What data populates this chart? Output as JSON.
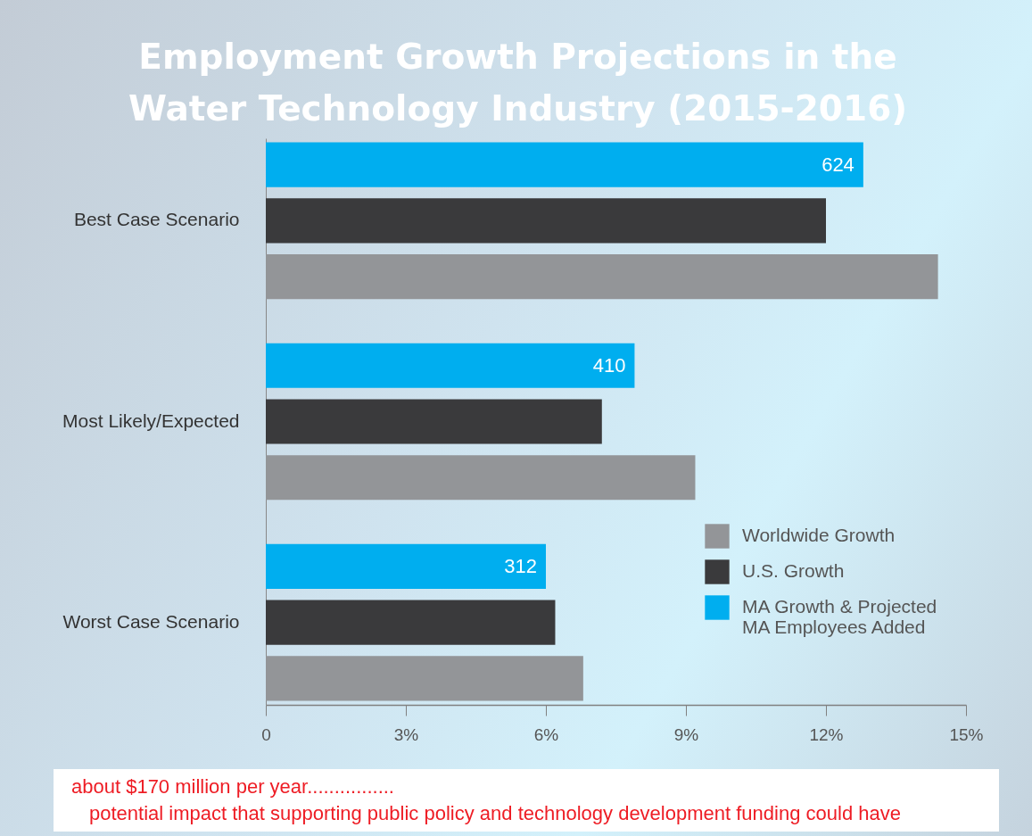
{
  "chart_data": {
    "type": "bar",
    "orientation": "horizontal",
    "title": "Employment Growth Projections in the\nWater Technology Industry (2015-2016)",
    "categories": [
      "Best Case Scenario",
      "Most Likely/Expected",
      "Worst Case Scenario"
    ],
    "series": [
      {
        "name": "Worldwide Growth",
        "color": "#939598",
        "values": [
          14.4,
          9.2,
          6.8
        ]
      },
      {
        "name": "U.S. Growth",
        "color": "#3a3a3c",
        "values": [
          12.0,
          7.2,
          6.2
        ]
      },
      {
        "name": "MA Growth & Projected\nMA Employees Added",
        "color": "#00aeef",
        "values": [
          12.8,
          7.9,
          6.0
        ]
      }
    ],
    "xlim": [
      0,
      15
    ],
    "xticks": [
      0,
      {
        "value": 3,
        "label": "3%"
      },
      {
        "value": 6,
        "label": "6%"
      },
      {
        "value": 9,
        "label": "9%"
      },
      {
        "value": 12,
        "label": "12%"
      },
      {
        "value": 15,
        "label": "15%"
      }
    ],
    "legend": "bottom right",
    "grid": false,
    "annotations": [
      "624",
      "410",
      "312",
      "about $170 million per year................",
      "potential impact that supporting public policy and technology development funding could have"
    ]
  }
}
